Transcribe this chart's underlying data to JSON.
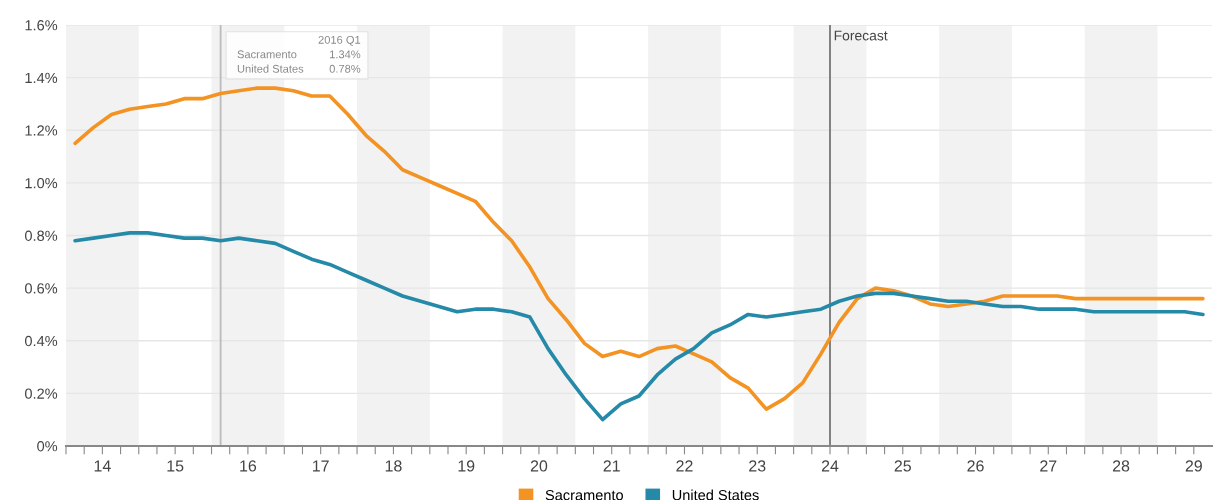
{
  "chart_data": {
    "type": "line",
    "x": [
      13.625,
      13.875,
      14.125,
      14.375,
      14.625,
      14.875,
      15.125,
      15.375,
      15.625,
      15.875,
      16.125,
      16.375,
      16.625,
      16.875,
      17.125,
      17.375,
      17.625,
      17.875,
      18.125,
      18.375,
      18.625,
      18.875,
      19.125,
      19.375,
      19.625,
      19.875,
      20.125,
      20.375,
      20.625,
      20.875,
      21.125,
      21.375,
      21.625,
      21.875,
      22.125,
      22.375,
      22.625,
      22.875,
      23.125,
      23.375,
      23.625,
      23.875,
      24.125,
      24.375,
      24.625,
      24.875,
      25.125,
      25.375,
      25.625,
      25.875,
      26.125,
      26.375,
      26.625,
      26.875,
      27.125,
      27.375,
      27.625,
      27.875,
      28.125,
      28.375,
      28.625,
      28.875,
      29.125
    ],
    "series": [
      {
        "name": "Sacramento",
        "color": "#f39323",
        "values": [
          1.15,
          1.21,
          1.26,
          1.28,
          1.29,
          1.3,
          1.32,
          1.32,
          1.34,
          1.35,
          1.36,
          1.36,
          1.35,
          1.33,
          1.33,
          1.26,
          1.18,
          1.12,
          1.05,
          1.02,
          0.99,
          0.96,
          0.93,
          0.85,
          0.78,
          0.68,
          0.56,
          0.48,
          0.39,
          0.34,
          0.36,
          0.34,
          0.37,
          0.38,
          0.35,
          0.32,
          0.26,
          0.22,
          0.14,
          0.18,
          0.24,
          0.35,
          0.47,
          0.56,
          0.6,
          0.59,
          0.57,
          0.54,
          0.53,
          0.54,
          0.55,
          0.57,
          0.57,
          0.57,
          0.57,
          0.56,
          0.56,
          0.56,
          0.56,
          0.56,
          0.56,
          0.56,
          0.56
        ]
      },
      {
        "name": "United States",
        "color": "#2589a8",
        "values": [
          0.78,
          0.79,
          0.8,
          0.81,
          0.81,
          0.8,
          0.79,
          0.79,
          0.78,
          0.79,
          0.78,
          0.77,
          0.74,
          0.71,
          0.69,
          0.66,
          0.63,
          0.6,
          0.57,
          0.55,
          0.53,
          0.51,
          0.52,
          0.52,
          0.51,
          0.49,
          0.37,
          0.27,
          0.18,
          0.1,
          0.16,
          0.19,
          0.27,
          0.33,
          0.37,
          0.43,
          0.46,
          0.5,
          0.49,
          0.5,
          0.51,
          0.52,
          0.55,
          0.57,
          0.58,
          0.58,
          0.57,
          0.56,
          0.55,
          0.55,
          0.54,
          0.53,
          0.53,
          0.52,
          0.52,
          0.52,
          0.51,
          0.51,
          0.51,
          0.51,
          0.51,
          0.51,
          0.5
        ]
      }
    ],
    "xlim": [
      13.5,
      29.25
    ],
    "xticks": [
      {
        "value": 13.5,
        "label": null
      },
      {
        "value": 13.75,
        "label": null
      },
      {
        "value": 14,
        "label": "14"
      },
      {
        "value": 14.25,
        "label": null
      },
      {
        "value": 14.5,
        "label": null
      },
      {
        "value": 14.75,
        "label": null
      },
      {
        "value": 15,
        "label": "15"
      },
      {
        "value": 15.25,
        "label": null
      },
      {
        "value": 15.5,
        "label": null
      },
      {
        "value": 15.75,
        "label": null
      },
      {
        "value": 16,
        "label": "16"
      },
      {
        "value": 16.25,
        "label": null
      },
      {
        "value": 16.5,
        "label": null
      },
      {
        "value": 16.75,
        "label": null
      },
      {
        "value": 17,
        "label": "17"
      },
      {
        "value": 17.25,
        "label": null
      },
      {
        "value": 17.5,
        "label": null
      },
      {
        "value": 17.75,
        "label": null
      },
      {
        "value": 18,
        "label": "18"
      },
      {
        "value": 18.25,
        "label": null
      },
      {
        "value": 18.5,
        "label": null
      },
      {
        "value": 18.75,
        "label": null
      },
      {
        "value": 19,
        "label": "19"
      },
      {
        "value": 19.25,
        "label": null
      },
      {
        "value": 19.5,
        "label": null
      },
      {
        "value": 19.75,
        "label": null
      },
      {
        "value": 20,
        "label": "20"
      },
      {
        "value": 20.25,
        "label": null
      },
      {
        "value": 20.5,
        "label": null
      },
      {
        "value": 20.75,
        "label": null
      },
      {
        "value": 21,
        "label": "21"
      },
      {
        "value": 21.25,
        "label": null
      },
      {
        "value": 21.5,
        "label": null
      },
      {
        "value": 21.75,
        "label": null
      },
      {
        "value": 22,
        "label": "22"
      },
      {
        "value": 22.25,
        "label": null
      },
      {
        "value": 22.5,
        "label": null
      },
      {
        "value": 22.75,
        "label": null
      },
      {
        "value": 23,
        "label": "23"
      },
      {
        "value": 23.25,
        "label": null
      },
      {
        "value": 23.5,
        "label": null
      },
      {
        "value": 23.75,
        "label": null
      },
      {
        "value": 24,
        "label": "24"
      },
      {
        "value": 24.25,
        "label": null
      },
      {
        "value": 24.5,
        "label": null
      },
      {
        "value": 24.75,
        "label": null
      },
      {
        "value": 25,
        "label": "25"
      },
      {
        "value": 25.25,
        "label": null
      },
      {
        "value": 25.5,
        "label": null
      },
      {
        "value": 25.75,
        "label": null
      },
      {
        "value": 26,
        "label": "26"
      },
      {
        "value": 26.25,
        "label": null
      },
      {
        "value": 26.5,
        "label": null
      },
      {
        "value": 26.75,
        "label": null
      },
      {
        "value": 27,
        "label": "27"
      },
      {
        "value": 27.25,
        "label": null
      },
      {
        "value": 27.5,
        "label": null
      },
      {
        "value": 27.75,
        "label": null
      },
      {
        "value": 28,
        "label": "28"
      },
      {
        "value": 28.25,
        "label": null
      },
      {
        "value": 28.5,
        "label": null
      },
      {
        "value": 28.75,
        "label": null
      },
      {
        "value": 29,
        "label": "29"
      }
    ],
    "ylim": [
      0,
      1.6
    ],
    "yticks": [
      {
        "value": 0,
        "label": "0%"
      },
      {
        "value": 0.2,
        "label": "0.2%"
      },
      {
        "value": 0.4,
        "label": "0.4%"
      },
      {
        "value": 0.6,
        "label": "0.6%"
      },
      {
        "value": 0.8,
        "label": "0.8%"
      },
      {
        "value": 1.0,
        "label": "1.0%"
      },
      {
        "value": 1.2,
        "label": "1.2%"
      },
      {
        "value": 1.4,
        "label": "1.4%"
      },
      {
        "value": 1.6,
        "label": "1.6%"
      }
    ],
    "grid": "y",
    "legend": "bottom",
    "bands": [
      {
        "axis": "x",
        "from": 13.5,
        "to": 14.5,
        "color": "#f2f2f2"
      },
      {
        "axis": "x",
        "from": 15.5,
        "to": 16.5,
        "color": "#f2f2f2"
      },
      {
        "axis": "x",
        "from": 17.5,
        "to": 18.5,
        "color": "#f2f2f2"
      },
      {
        "axis": "x",
        "from": 19.5,
        "to": 20.5,
        "color": "#f2f2f2"
      },
      {
        "axis": "x",
        "from": 21.5,
        "to": 22.5,
        "color": "#f2f2f2"
      },
      {
        "axis": "x",
        "from": 23.5,
        "to": 24.5,
        "color": "#f2f2f2"
      },
      {
        "axis": "x",
        "from": 25.5,
        "to": 26.5,
        "color": "#f2f2f2"
      },
      {
        "axis": "x",
        "from": 27.5,
        "to": 28.5,
        "color": "#f2f2f2"
      }
    ],
    "ref_lines": [
      {
        "axis": "x",
        "value": 24.0,
        "label": "Forecast",
        "color": "#777777"
      },
      {
        "axis": "x",
        "value": 15.625,
        "color": "#bbbbbb"
      }
    ],
    "annotations": [
      "2016 Q1",
      "Sacramento",
      "1.34%",
      "United States",
      "0.78%"
    ]
  }
}
